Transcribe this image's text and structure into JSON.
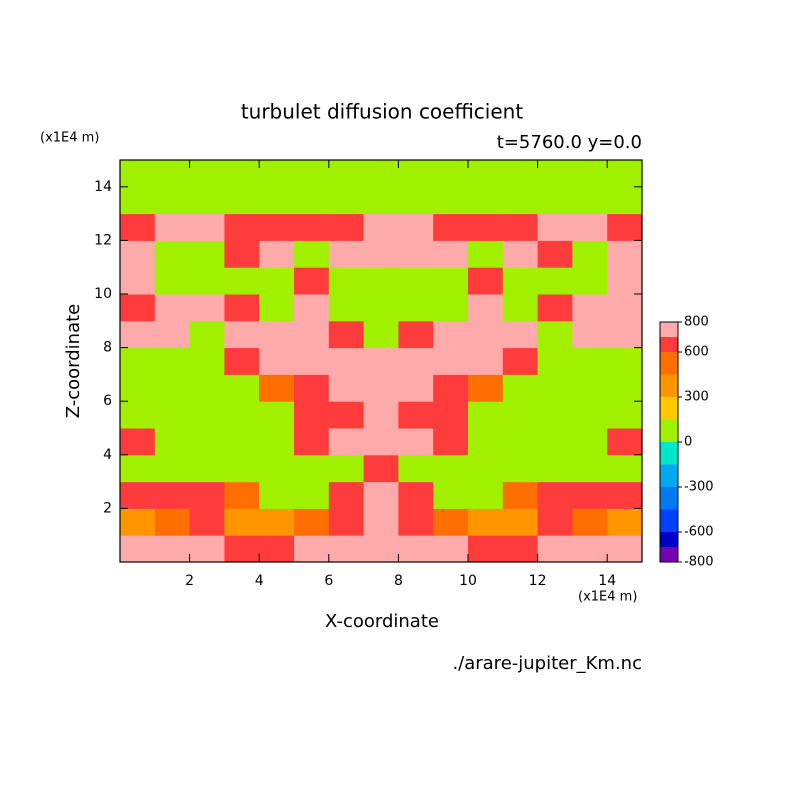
{
  "chart_data": {
    "type": "contour",
    "title": "turbulet diffusion coefficient",
    "subtitle": "t=5760.0 y=0.0",
    "y_unit": "(x1E4 m)",
    "x_unit": "(x1E4 m)",
    "x_label": "X-coordinate",
    "y_label": "Z-coordinate",
    "source": "./arare-jupiter_Km.nc",
    "xlim": [
      0,
      15
    ],
    "ylim": [
      0,
      15
    ],
    "xticks": [
      2,
      4,
      6,
      8,
      10,
      12,
      14
    ],
    "yticks": [
      2,
      4,
      6,
      8,
      10,
      12,
      14
    ],
    "x": [
      0.5,
      1.5,
      2.5,
      3.5,
      4.5,
      5.5,
      6.5,
      7.5,
      8.5,
      9.5,
      10.5,
      11.5,
      12.5,
      13.5,
      14.5
    ],
    "y": [
      0.5,
      1.5,
      2.5,
      3.5,
      4.5,
      5.5,
      6.5,
      7.5,
      8.5,
      9.5,
      10.5,
      11.5,
      12.5,
      13.5,
      14.5
    ],
    "z": [
      [
        750,
        750,
        750,
        650,
        650,
        750,
        750,
        750,
        750,
        750,
        650,
        650,
        750,
        750,
        750
      ],
      [
        300,
        450,
        650,
        300,
        300,
        450,
        650,
        750,
        650,
        450,
        300,
        300,
        650,
        450,
        300
      ],
      [
        650,
        650,
        650,
        450,
        100,
        100,
        650,
        750,
        650,
        100,
        100,
        450,
        650,
        650,
        650
      ],
      [
        100,
        100,
        100,
        100,
        100,
        100,
        100,
        650,
        100,
        100,
        100,
        100,
        100,
        100,
        100
      ],
      [
        650,
        100,
        100,
        100,
        100,
        650,
        750,
        750,
        750,
        650,
        100,
        100,
        100,
        100,
        650
      ],
      [
        100,
        100,
        100,
        100,
        100,
        650,
        650,
        750,
        650,
        650,
        100,
        100,
        100,
        100,
        100
      ],
      [
        100,
        100,
        100,
        100,
        450,
        650,
        750,
        750,
        750,
        650,
        450,
        100,
        100,
        100,
        100
      ],
      [
        100,
        100,
        100,
        650,
        750,
        750,
        750,
        750,
        750,
        750,
        750,
        650,
        100,
        100,
        100
      ],
      [
        750,
        750,
        100,
        750,
        750,
        750,
        650,
        100,
        650,
        750,
        750,
        750,
        100,
        750,
        750
      ],
      [
        650,
        750,
        750,
        650,
        100,
        750,
        100,
        100,
        100,
        100,
        750,
        100,
        650,
        750,
        750
      ],
      [
        750,
        100,
        100,
        100,
        100,
        650,
        100,
        100,
        100,
        100,
        650,
        100,
        100,
        100,
        750
      ],
      [
        750,
        100,
        100,
        650,
        750,
        100,
        750,
        750,
        750,
        750,
        100,
        750,
        650,
        100,
        750
      ],
      [
        650,
        750,
        750,
        650,
        650,
        650,
        650,
        750,
        750,
        650,
        650,
        650,
        750,
        750,
        650
      ],
      [
        100,
        100,
        100,
        100,
        100,
        100,
        100,
        100,
        100,
        100,
        100,
        100,
        100,
        100,
        100
      ],
      [
        100,
        100,
        100,
        100,
        100,
        100,
        100,
        100,
        100,
        100,
        100,
        100,
        100,
        100,
        100
      ]
    ],
    "levels": [
      -800,
      -700,
      -600,
      -450,
      -300,
      -150,
      0,
      150,
      300,
      450,
      600,
      700,
      800
    ],
    "colors": [
      "#7800b4",
      "#0000c8",
      "#0040ff",
      "#0078f0",
      "#00a8f0",
      "#00e6c8",
      "#a0f000",
      "#ffc800",
      "#ff9600",
      "#ff6e00",
      "#ff3c3c",
      "#ffaaaa"
    ],
    "cbar_ticks": [
      800,
      600,
      300,
      0,
      -300,
      -600,
      -800
    ]
  }
}
